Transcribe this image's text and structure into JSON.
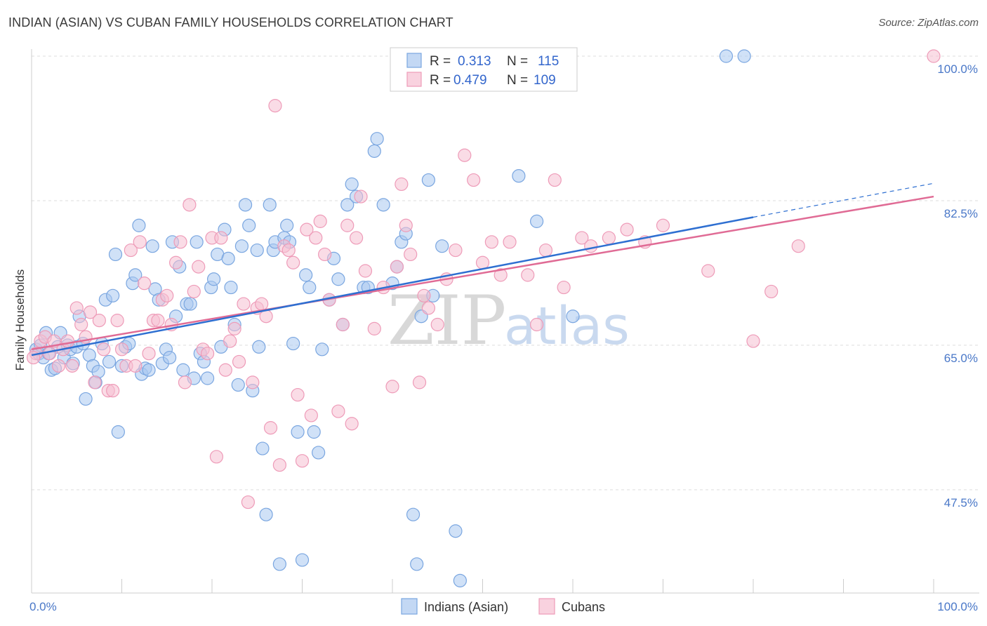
{
  "title": "INDIAN (ASIAN) VS CUBAN FAMILY HOUSEHOLDS CORRELATION CHART",
  "source": "Source: ZipAtlas.com",
  "watermark": {
    "zip": "ZIP",
    "atlas": "atlas"
  },
  "colors": {
    "blue_fill": "#a9c8f0",
    "blue_stroke": "#7aa6e0",
    "blue_line": "#2e6fd1",
    "pink_fill": "#f6bfd2",
    "pink_stroke": "#ee9bb8",
    "pink_line": "#e06b95",
    "grid": "#dddddd",
    "tick_text": "#4a78c8"
  },
  "legend": {
    "rows": [
      {
        "r_label": "R =",
        "r_value": "0.313",
        "n_label": "N =",
        "n_value": "115"
      },
      {
        "r_label": "R =",
        "r_value": "0.479",
        "n_label": "N =",
        "n_value": "109"
      }
    ]
  },
  "chart_data": {
    "type": "scatter",
    "title": "INDIAN (ASIAN) VS CUBAN FAMILY HOUSEHOLDS CORRELATION CHART",
    "xlabel": "",
    "ylabel": "Family Households",
    "xlim": [
      0,
      100
    ],
    "ylim": [
      35,
      100
    ],
    "x_tick_labels": [
      "0.0%",
      "100.0%"
    ],
    "y_ticks": [
      47.5,
      65.0,
      82.5,
      100.0
    ],
    "y_tick_labels": [
      "47.5%",
      "65.0%",
      "82.5%",
      "100.0%"
    ],
    "grid": true,
    "legend_position": "top-center",
    "series": [
      {
        "name": "Indians (Asian)",
        "color": "#a9c8f0",
        "trend": {
          "x": [
            0,
            80
          ],
          "y": [
            63.8,
            80.5
          ],
          "dashed_to": [
            100,
            84.6
          ]
        },
        "points": [
          [
            0.5,
            64.5
          ],
          [
            0.8,
            64.0
          ],
          [
            1.0,
            65.0
          ],
          [
            1.3,
            63.5
          ],
          [
            1.6,
            66.5
          ],
          [
            1.9,
            64.0
          ],
          [
            2.2,
            62.0
          ],
          [
            2.6,
            62.2
          ],
          [
            2.9,
            64.8
          ],
          [
            3.2,
            66.5
          ],
          [
            3.6,
            63.5
          ],
          [
            4.0,
            65.0
          ],
          [
            4.3,
            64.5
          ],
          [
            4.6,
            62.8
          ],
          [
            5.0,
            64.8
          ],
          [
            5.3,
            68.5
          ],
          [
            5.7,
            65.2
          ],
          [
            6.0,
            58.5
          ],
          [
            6.4,
            63.8
          ],
          [
            6.8,
            62.5
          ],
          [
            7.1,
            60.5
          ],
          [
            7.4,
            61.8
          ],
          [
            7.8,
            65.2
          ],
          [
            8.2,
            70.5
          ],
          [
            8.6,
            63.0
          ],
          [
            9.0,
            71.0
          ],
          [
            9.3,
            76.0
          ],
          [
            9.6,
            54.5
          ],
          [
            10.0,
            62.5
          ],
          [
            10.4,
            64.8
          ],
          [
            10.8,
            65.2
          ],
          [
            11.2,
            72.5
          ],
          [
            11.5,
            73.5
          ],
          [
            11.9,
            79.5
          ],
          [
            12.2,
            61.5
          ],
          [
            12.6,
            62.2
          ],
          [
            13.0,
            62.0
          ],
          [
            13.4,
            77.0
          ],
          [
            13.7,
            71.8
          ],
          [
            14.1,
            70.5
          ],
          [
            14.5,
            62.8
          ],
          [
            14.9,
            64.5
          ],
          [
            15.3,
            63.5
          ],
          [
            15.6,
            77.5
          ],
          [
            16.0,
            68.5
          ],
          [
            16.4,
            74.5
          ],
          [
            16.8,
            62.0
          ],
          [
            17.2,
            70.0
          ],
          [
            17.6,
            70.0
          ],
          [
            18.0,
            61.0
          ],
          [
            18.3,
            77.5
          ],
          [
            18.7,
            64.0
          ],
          [
            19.1,
            63.0
          ],
          [
            19.5,
            61.0
          ],
          [
            19.9,
            72.0
          ],
          [
            20.2,
            73.0
          ],
          [
            20.6,
            76.0
          ],
          [
            21.0,
            64.8
          ],
          [
            21.4,
            79.0
          ],
          [
            21.8,
            75.5
          ],
          [
            22.1,
            72.0
          ],
          [
            22.5,
            67.5
          ],
          [
            22.9,
            60.2
          ],
          [
            23.3,
            77.0
          ],
          [
            23.7,
            82.0
          ],
          [
            24.1,
            79.5
          ],
          [
            24.5,
            59.5
          ],
          [
            25.0,
            76.5
          ],
          [
            25.2,
            64.8
          ],
          [
            25.6,
            52.5
          ],
          [
            26.0,
            44.5
          ],
          [
            26.4,
            82.0
          ],
          [
            26.8,
            76.5
          ],
          [
            27.0,
            77.5
          ],
          [
            27.5,
            38.5
          ],
          [
            28.0,
            78.0
          ],
          [
            28.3,
            79.5
          ],
          [
            28.6,
            77.5
          ],
          [
            29.0,
            65.2
          ],
          [
            29.5,
            54.5
          ],
          [
            30.0,
            39.0
          ],
          [
            30.4,
            73.5
          ],
          [
            30.8,
            72.0
          ],
          [
            31.3,
            54.5
          ],
          [
            31.8,
            52.0
          ],
          [
            32.2,
            64.5
          ],
          [
            33.0,
            70.5
          ],
          [
            33.5,
            75.5
          ],
          [
            34.0,
            73.0
          ],
          [
            34.5,
            67.5
          ],
          [
            35.0,
            82.0
          ],
          [
            35.5,
            84.5
          ],
          [
            36.0,
            83.0
          ],
          [
            36.8,
            72.0
          ],
          [
            37.3,
            72.0
          ],
          [
            38.0,
            88.5
          ],
          [
            38.3,
            90.0
          ],
          [
            39.0,
            82.0
          ],
          [
            40.0,
            72.5
          ],
          [
            40.5,
            74.5
          ],
          [
            41.0,
            77.5
          ],
          [
            41.5,
            78.5
          ],
          [
            42.3,
            44.5
          ],
          [
            42.7,
            38.5
          ],
          [
            43.2,
            68.5
          ],
          [
            44.0,
            85.0
          ],
          [
            44.5,
            71.0
          ],
          [
            45.5,
            77.0
          ],
          [
            47.0,
            42.5
          ],
          [
            47.5,
            36.5
          ],
          [
            54.0,
            85.5
          ],
          [
            56.0,
            80.0
          ],
          [
            60.0,
            68.5
          ],
          [
            77.0,
            100.0
          ],
          [
            79.0,
            100.0
          ]
        ]
      },
      {
        "name": "Cubans",
        "color": "#f6bfd2",
        "trend": {
          "x": [
            0,
            100
          ],
          "y": [
            64.5,
            83.0
          ]
        },
        "points": [
          [
            0.5,
            64.0
          ],
          [
            1.0,
            65.5
          ],
          [
            1.5,
            66.0
          ],
          [
            2.0,
            64.0
          ],
          [
            2.5,
            65.5
          ],
          [
            3.0,
            62.5
          ],
          [
            3.5,
            64.5
          ],
          [
            4.0,
            65.5
          ],
          [
            4.5,
            62.5
          ],
          [
            5.0,
            69.5
          ],
          [
            5.5,
            67.5
          ],
          [
            6.0,
            66.0
          ],
          [
            6.5,
            69.0
          ],
          [
            7.0,
            60.5
          ],
          [
            7.5,
            68.0
          ],
          [
            8.0,
            64.5
          ],
          [
            8.5,
            59.5
          ],
          [
            9.0,
            59.5
          ],
          [
            9.5,
            68.0
          ],
          [
            10.0,
            64.5
          ],
          [
            10.5,
            62.5
          ],
          [
            11.0,
            76.5
          ],
          [
            11.5,
            62.5
          ],
          [
            12.0,
            77.5
          ],
          [
            12.5,
            72.5
          ],
          [
            13.0,
            64.0
          ],
          [
            13.5,
            68.0
          ],
          [
            14.0,
            68.0
          ],
          [
            14.5,
            70.5
          ],
          [
            15.0,
            71.0
          ],
          [
            15.5,
            67.5
          ],
          [
            16.0,
            75.0
          ],
          [
            16.5,
            77.5
          ],
          [
            17.0,
            60.5
          ],
          [
            17.5,
            82.0
          ],
          [
            18.0,
            71.5
          ],
          [
            18.5,
            74.5
          ],
          [
            19.0,
            64.5
          ],
          [
            19.5,
            64.0
          ],
          [
            20.0,
            78.0
          ],
          [
            20.5,
            51.5
          ],
          [
            21.0,
            78.0
          ],
          [
            21.5,
            62.0
          ],
          [
            22.0,
            65.5
          ],
          [
            22.5,
            67.0
          ],
          [
            23.0,
            63.0
          ],
          [
            23.5,
            70.0
          ],
          [
            24.0,
            46.0
          ],
          [
            24.5,
            60.5
          ],
          [
            25.0,
            69.5
          ],
          [
            25.5,
            70.0
          ],
          [
            26.0,
            68.5
          ],
          [
            26.5,
            55.0
          ],
          [
            27.0,
            94.0
          ],
          [
            27.5,
            50.5
          ],
          [
            28.0,
            77.0
          ],
          [
            28.5,
            76.5
          ],
          [
            29.0,
            75.0
          ],
          [
            29.5,
            59.0
          ],
          [
            30.0,
            51.0
          ],
          [
            30.5,
            79.0
          ],
          [
            31.0,
            56.5
          ],
          [
            31.5,
            78.0
          ],
          [
            32.0,
            80.0
          ],
          [
            32.5,
            76.0
          ],
          [
            33.0,
            70.5
          ],
          [
            34.0,
            57.0
          ],
          [
            34.5,
            67.5
          ],
          [
            35.0,
            79.5
          ],
          [
            35.5,
            55.5
          ],
          [
            36.0,
            78.0
          ],
          [
            36.5,
            83.0
          ],
          [
            37.0,
            74.0
          ],
          [
            38.0,
            67.0
          ],
          [
            39.0,
            72.0
          ],
          [
            40.0,
            60.0
          ],
          [
            40.5,
            74.5
          ],
          [
            41.0,
            84.5
          ],
          [
            41.5,
            79.5
          ],
          [
            42.0,
            76.0
          ],
          [
            43.0,
            60.5
          ],
          [
            43.5,
            71.0
          ],
          [
            44.0,
            69.5
          ],
          [
            45.0,
            67.5
          ],
          [
            46.0,
            73.0
          ],
          [
            47.0,
            76.5
          ],
          [
            48.0,
            88.0
          ],
          [
            49.0,
            85.0
          ],
          [
            50.0,
            75.0
          ],
          [
            51.0,
            77.5
          ],
          [
            52.0,
            73.5
          ],
          [
            53.0,
            77.5
          ],
          [
            55.0,
            73.5
          ],
          [
            56.0,
            67.5
          ],
          [
            57.0,
            76.5
          ],
          [
            58.0,
            85.0
          ],
          [
            59.0,
            72.0
          ],
          [
            61.0,
            78.0
          ],
          [
            62.0,
            77.0
          ],
          [
            64.0,
            78.0
          ],
          [
            66.0,
            79.0
          ],
          [
            68.0,
            77.5
          ],
          [
            70.0,
            79.5
          ],
          [
            75.0,
            74.0
          ],
          [
            80.0,
            65.5
          ],
          [
            82.0,
            71.5
          ],
          [
            85.0,
            77.0
          ],
          [
            100.0,
            100.0
          ],
          [
            0.2,
            63.5
          ]
        ]
      }
    ]
  },
  "bottom_legend": {
    "items": [
      {
        "label": "Indians (Asian)"
      },
      {
        "label": "Cubans"
      }
    ]
  }
}
